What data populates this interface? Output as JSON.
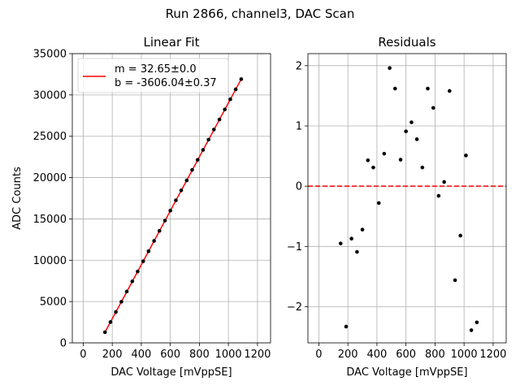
{
  "suptitle": "Run 2866, channel3, DAC Scan",
  "chart_data": [
    {
      "type": "scatter",
      "title": "Linear Fit",
      "xlabel": "DAC Voltage [mVppSE]",
      "ylabel": "ADC Counts",
      "xlim": [
        -75,
        1290
      ],
      "ylim": [
        0,
        35000
      ],
      "xticks": [
        "0",
        "200",
        "400",
        "600",
        "800",
        "1000",
        "1200"
      ],
      "yticks": [
        "0",
        "5000",
        "10000",
        "15000",
        "20000",
        "25000",
        "30000",
        "35000"
      ],
      "grid": true,
      "legend_placement": "upper-left",
      "legend": [
        "m = 32.65±0.0",
        "b = -3606.04±0.37"
      ],
      "fit": {
        "slope": 32.65,
        "intercept": -3606.04,
        "color": "#ff0000",
        "x_range": [
          150,
          1090
        ]
      },
      "points_color": "#000000",
      "x": [
        150,
        188,
        225,
        263,
        300,
        338,
        375,
        413,
        450,
        488,
        525,
        563,
        600,
        638,
        675,
        713,
        750,
        788,
        825,
        863,
        900,
        938,
        975,
        1013,
        1050,
        1088
      ],
      "y": [
        1290,
        2525,
        3741,
        4982,
        6211,
        7445,
        8635,
        9878,
        11091,
        12340,
        13561,
        14793,
        16003,
        17252,
        18456,
        19660,
        20928,
        22141,
        23345,
        24587,
        25818,
        27026,
        28247,
        29474,
        30680,
        31913
      ]
    },
    {
      "type": "scatter",
      "title": "Residuals",
      "xlabel": "DAC Voltage [mVppSE]",
      "ylabel": "",
      "xlim": [
        -75,
        1290
      ],
      "ylim": [
        -2.6,
        2.2
      ],
      "xticks": [
        "0",
        "200",
        "400",
        "600",
        "800",
        "1000",
        "1200"
      ],
      "yticks": [
        "−2",
        "−1",
        "0",
        "1",
        "2"
      ],
      "grid": true,
      "reference_line": {
        "y": 0,
        "style": "dashed",
        "color": "#ff0000"
      },
      "points_color": "#000000",
      "x": [
        150,
        188,
        225,
        263,
        300,
        338,
        375,
        413,
        450,
        488,
        525,
        563,
        600,
        638,
        675,
        713,
        750,
        788,
        825,
        863,
        900,
        938,
        975,
        1013,
        1050,
        1088
      ],
      "y": [
        -0.95,
        -2.33,
        -0.87,
        -1.09,
        -0.72,
        0.43,
        0.31,
        -0.28,
        0.54,
        1.96,
        1.62,
        0.44,
        0.91,
        1.06,
        0.78,
        0.31,
        1.62,
        1.3,
        -0.16,
        0.07,
        1.58,
        -1.56,
        -0.82,
        0.51,
        -2.39,
        -2.26
      ]
    }
  ]
}
